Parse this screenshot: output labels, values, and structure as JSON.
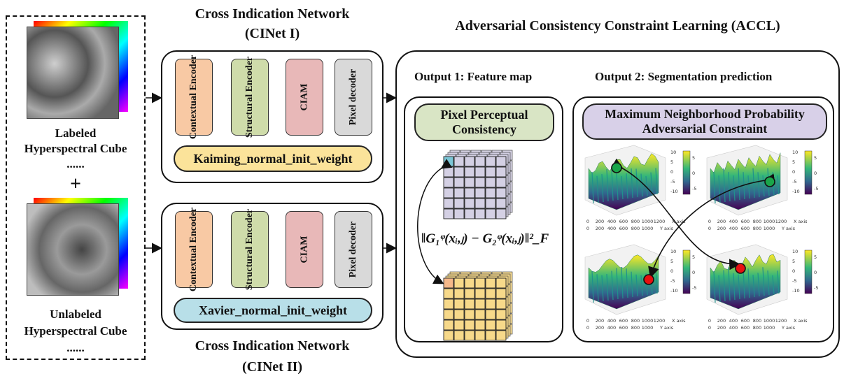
{
  "left_panel": {
    "labeled_line1": "Labeled",
    "labeled_line2": "Hyperspectral Cube",
    "labeled_dots": "......",
    "plus": "+",
    "unlabeled_line1": "Unlabeled",
    "unlabeled_line2": "Hyperspectral Cube",
    "unlabeled_dots": "......"
  },
  "cinet1": {
    "title": "Cross Indication Network",
    "subtitle": "(CINet I)",
    "blocks": [
      "Contextual Encoder",
      "Structural Encoder",
      "CIAM",
      "Pixel decoder"
    ],
    "init": "Kaiming_normal_init_weight"
  },
  "cinet2": {
    "title": "Cross Indication Network",
    "subtitle": "(CINet II)",
    "blocks": [
      "Contextual Encoder",
      "Structural Encoder",
      "CIAM",
      "Pixel decoder"
    ],
    "init": "Xavier_normal_init_weight"
  },
  "accl": {
    "title": "Adversarial Consistency Constraint Learning (ACCL)",
    "output1": "Output 1: Feature map",
    "output2": "Output 2: Segmentation prediction",
    "ppc": "Pixel Perceptual Consistency",
    "formula": "‖G₁ᵠ(xᵢ,ⱼ) − G₂ᵠ(xᵢ,ⱼ)‖²_F",
    "mnpac": "Maximum Neighborhood Probability Adversarial Constraint",
    "plot_axis": {
      "x_label": "X axis",
      "y_label": "Y axis",
      "x_ticks": [
        "0",
        "200",
        "400",
        "600",
        "800",
        "1000",
        "1200"
      ],
      "y_ticks": [
        "0",
        "200",
        "400",
        "600",
        "800",
        "1000"
      ],
      "z_ticks": [
        "10",
        "5",
        "0",
        "-5",
        "-10"
      ],
      "cbar_ticks": [
        "5",
        "0",
        "-5"
      ]
    }
  },
  "colors": {
    "contextual": "#f8c9a4",
    "structural": "#cfdcaa",
    "ciam": "#e8b8b8",
    "decoder": "#d9d9d9",
    "kaiming": "#fbe39a",
    "xavier": "#b8dfe8",
    "ppc": "#d9e5c5",
    "mnpac": "#d8d0e8",
    "cube_top": "#d4d0e4",
    "cube_bottom": "#f7d98a",
    "marker_good": "#1aa64a",
    "marker_bad": "#e81010"
  }
}
